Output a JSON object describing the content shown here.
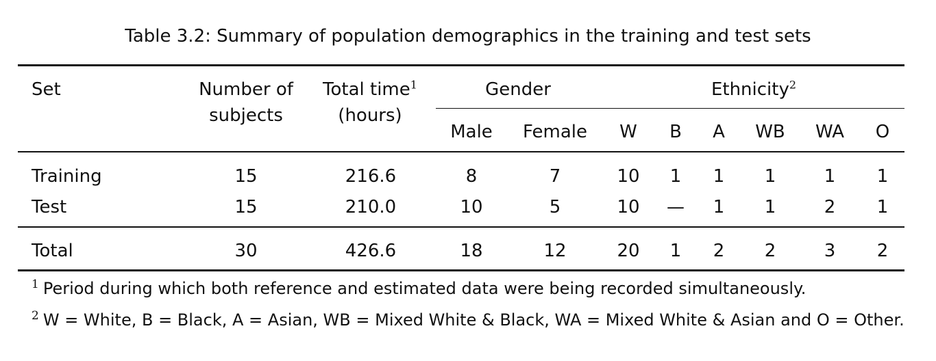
{
  "caption": "Table 3.2: Summary of population demographics in the training and test sets",
  "header": {
    "set": "Set",
    "subjects_line1": "Number of",
    "subjects_line2": "subjects",
    "time_line1": "Total time",
    "time_line1_sup": "1",
    "time_line2": "(hours)",
    "gender": "Gender",
    "ethnicity": "Ethnicity",
    "ethnicity_sup": "2",
    "male": "Male",
    "female": "Female",
    "w": "W",
    "b": "B",
    "a": "A",
    "wb": "WB",
    "wa": "WA",
    "o": "O"
  },
  "rows": [
    {
      "set": "Training",
      "subjects": "15",
      "time": "216.6",
      "male": "8",
      "female": "7",
      "w": "10",
      "b": "1",
      "a": "1",
      "wb": "1",
      "wa": "1",
      "o": "1"
    },
    {
      "set": "Test",
      "subjects": "15",
      "time": "210.0",
      "male": "10",
      "female": "5",
      "w": "10",
      "b": "—",
      "a": "1",
      "wb": "1",
      "wa": "2",
      "o": "1"
    }
  ],
  "total": {
    "set": "Total",
    "subjects": "30",
    "time": "426.6",
    "male": "18",
    "female": "12",
    "w": "20",
    "b": "1",
    "a": "2",
    "wb": "2",
    "wa": "3",
    "o": "2"
  },
  "footnotes": [
    {
      "mark": "1",
      "text": "Period during which both reference and estimated data were being recorded simultaneously."
    },
    {
      "mark": "2",
      "text": "W = White, B = Black, A = Asian, WB = Mixed White & Black, WA = Mixed White & Asian and O = Other."
    }
  ]
}
